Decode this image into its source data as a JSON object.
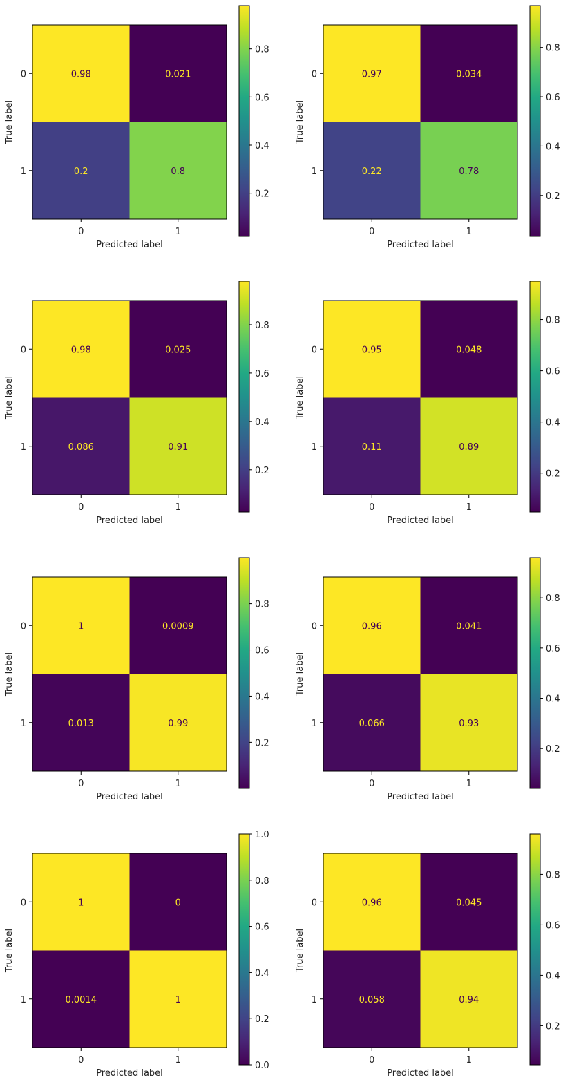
{
  "figure": {
    "xlabel": "Predicted label",
    "ylabel": "True label"
  },
  "chart_data": [
    {
      "type": "heatmap",
      "categories_x": [
        "0",
        "1"
      ],
      "categories_y": [
        "0",
        "1"
      ],
      "values": [
        [
          0.98,
          0.021
        ],
        [
          0.2,
          0.8
        ]
      ],
      "labels": [
        [
          "0.98",
          "0.021"
        ],
        [
          "0.2",
          "0.8"
        ]
      ],
      "xlabel": "Predicted label",
      "ylabel": "True label",
      "colorbar": {
        "range": [
          0.021,
          0.98
        ],
        "ticks": [
          "0.2",
          "0.4",
          "0.6",
          "0.8"
        ],
        "tick_values": [
          0.2,
          0.4,
          0.6,
          0.8
        ]
      }
    },
    {
      "type": "heatmap",
      "categories_x": [
        "0",
        "1"
      ],
      "categories_y": [
        "0",
        "1"
      ],
      "values": [
        [
          0.97,
          0.034
        ],
        [
          0.22,
          0.78
        ]
      ],
      "labels": [
        [
          "0.97",
          "0.034"
        ],
        [
          "0.22",
          "0.78"
        ]
      ],
      "xlabel": "Predicted label",
      "ylabel": "True label",
      "colorbar": {
        "range": [
          0.034,
          0.97
        ],
        "ticks": [
          "0.2",
          "0.4",
          "0.6",
          "0.8"
        ],
        "tick_values": [
          0.2,
          0.4,
          0.6,
          0.8
        ]
      }
    },
    {
      "type": "heatmap",
      "categories_x": [
        "0",
        "1"
      ],
      "categories_y": [
        "0",
        "1"
      ],
      "values": [
        [
          0.98,
          0.025
        ],
        [
          0.086,
          0.91
        ]
      ],
      "labels": [
        [
          "0.98",
          "0.025"
        ],
        [
          "0.086",
          "0.91"
        ]
      ],
      "xlabel": "Predicted label",
      "ylabel": "True label",
      "colorbar": {
        "range": [
          0.025,
          0.98
        ],
        "ticks": [
          "0.2",
          "0.4",
          "0.6",
          "0.8"
        ],
        "tick_values": [
          0.2,
          0.4,
          0.6,
          0.8
        ]
      }
    },
    {
      "type": "heatmap",
      "categories_x": [
        "0",
        "1"
      ],
      "categories_y": [
        "0",
        "1"
      ],
      "values": [
        [
          0.95,
          0.048
        ],
        [
          0.11,
          0.89
        ]
      ],
      "labels": [
        [
          "0.95",
          "0.048"
        ],
        [
          "0.11",
          "0.89"
        ]
      ],
      "xlabel": "Predicted label",
      "ylabel": "True label",
      "colorbar": {
        "range": [
          0.048,
          0.95
        ],
        "ticks": [
          "0.2",
          "0.4",
          "0.6",
          "0.8"
        ],
        "tick_values": [
          0.2,
          0.4,
          0.6,
          0.8
        ]
      }
    },
    {
      "type": "heatmap",
      "categories_x": [
        "0",
        "1"
      ],
      "categories_y": [
        "0",
        "1"
      ],
      "values": [
        [
          1.0,
          0.0009
        ],
        [
          0.013,
          0.99
        ]
      ],
      "labels": [
        [
          "1",
          "0.0009"
        ],
        [
          "0.013",
          "0.99"
        ]
      ],
      "xlabel": "Predicted label",
      "ylabel": "True label",
      "colorbar": {
        "range": [
          0.0009,
          0.999
        ],
        "ticks": [
          "0.2",
          "0.4",
          "0.6",
          "0.8"
        ],
        "tick_values": [
          0.2,
          0.4,
          0.6,
          0.8
        ]
      }
    },
    {
      "type": "heatmap",
      "categories_x": [
        "0",
        "1"
      ],
      "categories_y": [
        "0",
        "1"
      ],
      "values": [
        [
          0.96,
          0.041
        ],
        [
          0.066,
          0.93
        ]
      ],
      "labels": [
        [
          "0.96",
          "0.041"
        ],
        [
          "0.066",
          "0.93"
        ]
      ],
      "xlabel": "Predicted label",
      "ylabel": "True label",
      "colorbar": {
        "range": [
          0.041,
          0.96
        ],
        "ticks": [
          "0.2",
          "0.4",
          "0.6",
          "0.8"
        ],
        "tick_values": [
          0.2,
          0.4,
          0.6,
          0.8
        ]
      }
    },
    {
      "type": "heatmap",
      "categories_x": [
        "0",
        "1"
      ],
      "categories_y": [
        "0",
        "1"
      ],
      "values": [
        [
          1.0,
          0.0
        ],
        [
          0.0014,
          1.0
        ]
      ],
      "labels": [
        [
          "1",
          "0"
        ],
        [
          "0.0014",
          "1"
        ]
      ],
      "xlabel": "Predicted label",
      "ylabel": "True label",
      "colorbar": {
        "range": [
          0.0,
          1.0
        ],
        "ticks": [
          "0.0",
          "0.2",
          "0.4",
          "0.6",
          "0.8",
          "1.0"
        ],
        "tick_values": [
          0.0,
          0.2,
          0.4,
          0.6,
          0.8,
          1.0
        ]
      }
    },
    {
      "type": "heatmap",
      "categories_x": [
        "0",
        "1"
      ],
      "categories_y": [
        "0",
        "1"
      ],
      "values": [
        [
          0.96,
          0.045
        ],
        [
          0.058,
          0.94
        ]
      ],
      "labels": [
        [
          "0.96",
          "0.045"
        ],
        [
          "0.058",
          "0.94"
        ]
      ],
      "xlabel": "Predicted label",
      "ylabel": "True label",
      "colorbar": {
        "range": [
          0.045,
          0.96
        ],
        "ticks": [
          "0.2",
          "0.4",
          "0.6",
          "0.8"
        ],
        "tick_values": [
          0.2,
          0.4,
          0.6,
          0.8
        ]
      }
    }
  ]
}
